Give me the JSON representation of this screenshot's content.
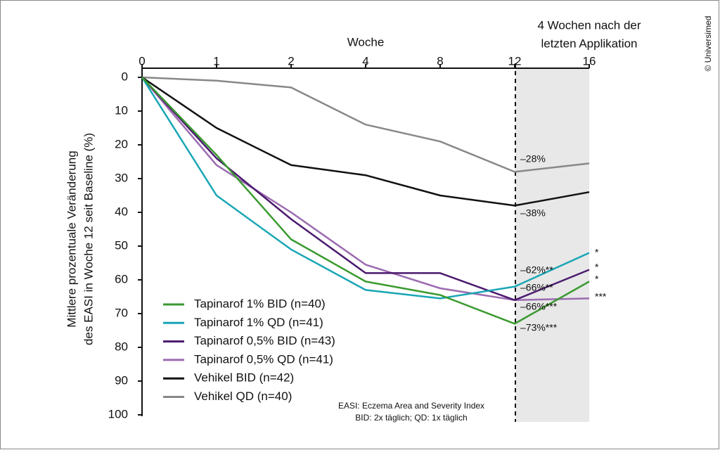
{
  "chart_data": {
    "type": "line",
    "x_label": "Woche",
    "period_label": [
      "4 Wochen nach der",
      "letzten Applikation"
    ],
    "y_label": [
      "Mittlere prozentuale Veränderung",
      "des EASI in Woche 12 seit Baseline (%)"
    ],
    "categories": [
      "0",
      "1",
      "2",
      "4",
      "8",
      "12",
      "16"
    ],
    "ylim": [
      0,
      100
    ],
    "yticks": [
      0,
      10,
      20,
      30,
      40,
      50,
      60,
      70,
      80,
      90,
      100
    ],
    "y_inverted": true,
    "series": [
      {
        "name": "Tapinarof 1% BID (n=40)",
        "color": "#3a9a2f",
        "values": [
          0,
          23,
          48,
          60.5,
          64.5,
          73,
          60.5
        ]
      },
      {
        "name": "Tapinarof 1% QD (n=41)",
        "color": "#19a6b5",
        "values": [
          0,
          35,
          51,
          63,
          65.5,
          62,
          52
        ]
      },
      {
        "name": "Tapinarof 0,5% BID (n=43)",
        "color": "#4b1a6e",
        "values": [
          0,
          24,
          42,
          58,
          58,
          66,
          57
        ]
      },
      {
        "name": "Tapinarof 0,5% QD (n=41)",
        "color": "#9b6bb0",
        "values": [
          0,
          26,
          40,
          55.5,
          62.5,
          66,
          65.5
        ]
      },
      {
        "name": "Vehikel BID (n=42)",
        "color": "#111111",
        "values": [
          0,
          15,
          26,
          29,
          35,
          38,
          34
        ]
      },
      {
        "name": "Vehikel QD (n=40)",
        "color": "#888888",
        "values": [
          0,
          1,
          3,
          14,
          19,
          28,
          25.5
        ]
      }
    ],
    "annotations": [
      "–28%",
      "–38%",
      "–62%**",
      "–66%**",
      "–66%***",
      "–73%***",
      "*",
      "*",
      "*",
      "***"
    ],
    "footnotes": [
      "EASI: Eczema Area and Severity Index",
      "BID: 2x täglich; QD: 1x täglich"
    ],
    "credit": "© Universimed"
  }
}
